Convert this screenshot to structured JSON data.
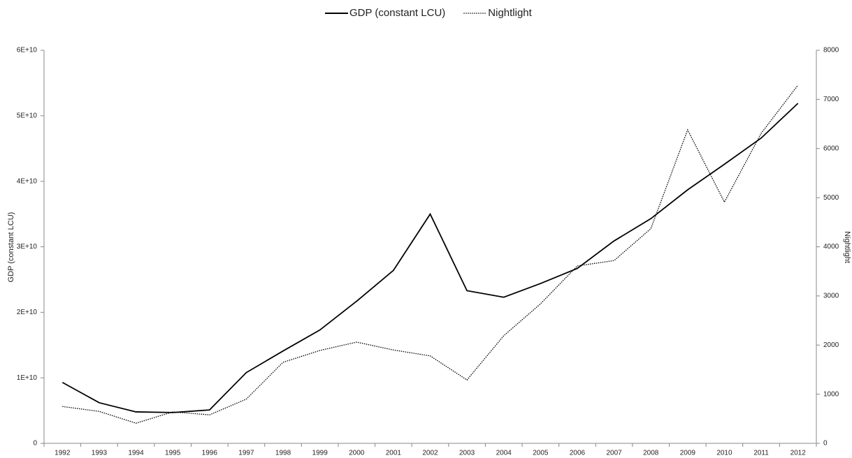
{
  "chart_data": {
    "type": "line",
    "categories": [
      "1992",
      "1993",
      "1994",
      "1995",
      "1996",
      "1997",
      "1998",
      "1999",
      "2000",
      "2001",
      "2002",
      "2003",
      "2004",
      "2005",
      "2006",
      "2007",
      "2008",
      "2009",
      "2010",
      "2011",
      "2012"
    ],
    "series": [
      {
        "name": "GDP (constant LCU)",
        "color": "#000000",
        "style": "solid",
        "axis": "y",
        "values": [
          9300000000,
          6200000000,
          4800000000,
          4700000000,
          5100000000,
          10800000000,
          14100000000,
          17300000000,
          21700000000,
          26400000000,
          35000000000,
          23300000000,
          22300000000,
          24400000000,
          26700000000,
          30900000000,
          34300000000,
          38700000000,
          42600000000,
          46600000000,
          51900000000
        ]
      },
      {
        "name": "Nightlight",
        "color": "#000000",
        "style": "dotted",
        "axis": "y2",
        "values": [
          750,
          650,
          410,
          640,
          580,
          900,
          1650,
          1890,
          2060,
          1900,
          1780,
          1290,
          2190,
          2840,
          3610,
          3720,
          4370,
          6380,
          4910,
          6310,
          7290
        ]
      }
    ],
    "ylabel": "GDP (constant LCU)",
    "y2label": "Nightlight",
    "ylim": [
      0,
      60000000000
    ],
    "yticks": [
      0,
      {
        "value": 10000000000,
        "label": "1E+10"
      },
      {
        "value": 20000000000,
        "label": "2E+10"
      },
      {
        "value": 30000000000,
        "label": "3E+10"
      },
      {
        "value": 40000000000,
        "label": "4E+10"
      },
      {
        "value": 50000000000,
        "label": "5E+10"
      },
      {
        "value": 60000000000,
        "label": "6E+10"
      }
    ],
    "y2lim": [
      0,
      8000
    ],
    "y2ticks": [
      0,
      1000,
      2000,
      3000,
      4000,
      5000,
      6000,
      7000,
      8000
    ],
    "legend": "top",
    "grid": false
  }
}
